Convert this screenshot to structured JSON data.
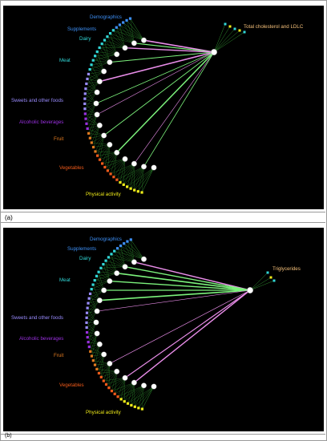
{
  "colors": {
    "background": "#000000",
    "edge_thin": "#2e8b2e",
    "edge_positive": "#7cf27c",
    "edge_negative": "#e98de9",
    "node_fill": "#ffffff",
    "frame": "#9a9a9a"
  },
  "panels": [
    {
      "id": "a",
      "label": "(a)",
      "target": "Total cholesterol and LDLC",
      "groups": [
        {
          "name": "Demographics",
          "color": "#3d8ff5"
        },
        {
          "name": "Supplements",
          "color": "#3d8ff5"
        },
        {
          "name": "Dairy",
          "color": "#31d6d6"
        },
        {
          "name": "Meat",
          "color": "#31d6d6"
        },
        {
          "name": "Sweets and other foods",
          "color": "#9a8cff"
        },
        {
          "name": "Alcoholic beverages",
          "color": "#9a30e0"
        },
        {
          "name": "Fruit",
          "color": "#e07a20"
        },
        {
          "name": "Vegetables",
          "color": "#f05a1a"
        },
        {
          "name": "Physical activity",
          "color": "#f2ee1a"
        }
      ]
    },
    {
      "id": "b",
      "label": "(b)",
      "target": "Triglycerides",
      "groups": [
        {
          "name": "Demographics",
          "color": "#3d8ff5"
        },
        {
          "name": "Supplements",
          "color": "#3d8ff5"
        },
        {
          "name": "Dairy",
          "color": "#31d6d6"
        },
        {
          "name": "Meat",
          "color": "#31d6d6"
        },
        {
          "name": "Sweets and other foods",
          "color": "#9a8cff"
        },
        {
          "name": "Alcoholic beverages",
          "color": "#9a30e0"
        },
        {
          "name": "Fruit",
          "color": "#e07a20"
        },
        {
          "name": "Vegetables",
          "color": "#f05a1a"
        },
        {
          "name": "Physical activity",
          "color": "#f2ee1a"
        }
      ]
    }
  ]
}
